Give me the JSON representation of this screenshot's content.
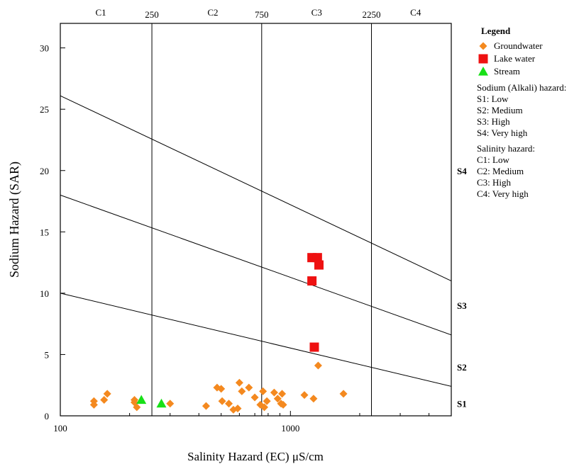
{
  "chart_data": {
    "type": "scatter",
    "xscale": "log",
    "xlim": [
      100,
      5000
    ],
    "ylim": [
      0,
      32
    ],
    "xlabel": "Salinity Hazard (EC) μS/cm",
    "ylabel": "Sodium Hazard (SAR)",
    "x_ticks": [
      {
        "value": 100,
        "label": "100"
      },
      {
        "value": 1000,
        "label": "1000"
      }
    ],
    "y_ticks": [
      0,
      5,
      10,
      15,
      20,
      25,
      30
    ],
    "salinity_boundaries": [
      {
        "value": 250,
        "label": "250"
      },
      {
        "value": 750,
        "label": "750"
      },
      {
        "value": 2250,
        "label": "2250"
      }
    ],
    "salinity_classes": [
      {
        "label": "C1",
        "x": 150
      },
      {
        "label": "C2",
        "x": 460
      },
      {
        "label": "C3",
        "x": 1300
      },
      {
        "label": "C4",
        "x": 3500
      }
    ],
    "sodium_boundaries": [
      {
        "label": "S1/S2",
        "x": [
          100,
          5000
        ],
        "y": [
          10,
          2.4
        ]
      },
      {
        "label": "S2/S3",
        "x": [
          100,
          5000
        ],
        "y": [
          18,
          6.6
        ]
      },
      {
        "label": "S3/S4",
        "x": [
          100,
          5000
        ],
        "y": [
          26.1,
          11
        ]
      }
    ],
    "sodium_class_labels": [
      {
        "label": "S1",
        "y": 1
      },
      {
        "label": "S2",
        "y": 4
      },
      {
        "label": "S3",
        "y": 9
      },
      {
        "label": "S4",
        "y": 20
      }
    ],
    "grid": false,
    "legend_position": "right",
    "series": [
      {
        "name": "Groundwater",
        "marker": "diamond",
        "color": "#f4891f",
        "points": [
          [
            140,
            0.9
          ],
          [
            140,
            1.2
          ],
          [
            155,
            1.3
          ],
          [
            160,
            1.8
          ],
          [
            210,
            1.3
          ],
          [
            210,
            1.1
          ],
          [
            215,
            0.7
          ],
          [
            300,
            1.0
          ],
          [
            430,
            0.8
          ],
          [
            480,
            2.3
          ],
          [
            500,
            2.2
          ],
          [
            505,
            1.2
          ],
          [
            540,
            1.0
          ],
          [
            565,
            0.5
          ],
          [
            590,
            0.6
          ],
          [
            600,
            2.7
          ],
          [
            615,
            2.0
          ],
          [
            660,
            2.3
          ],
          [
            700,
            1.5
          ],
          [
            740,
            0.9
          ],
          [
            760,
            2.0
          ],
          [
            770,
            0.7
          ],
          [
            790,
            1.2
          ],
          [
            850,
            1.9
          ],
          [
            880,
            1.4
          ],
          [
            910,
            1.0
          ],
          [
            920,
            1.8
          ],
          [
            930,
            0.9
          ],
          [
            1150,
            1.7
          ],
          [
            1260,
            1.4
          ],
          [
            1320,
            4.1
          ],
          [
            1700,
            1.8
          ]
        ]
      },
      {
        "name": "Lake water",
        "marker": "square",
        "color": "#ee1111",
        "points": [
          [
            1240,
            12.9
          ],
          [
            1310,
            12.9
          ],
          [
            1330,
            12.3
          ],
          [
            1240,
            11.0
          ],
          [
            1270,
            5.6
          ]
        ]
      },
      {
        "name": "Stream",
        "marker": "triangle",
        "color": "#17e017",
        "points": [
          [
            225,
            1.3
          ],
          [
            275,
            1.0
          ]
        ]
      }
    ]
  },
  "legend": {
    "title": "Legend",
    "sodium_title": "Sodium (Alkali) hazard:",
    "sodium_items": [
      "S1: Low",
      "S2: Medium",
      "S3: High",
      "S4: Very high"
    ],
    "salinity_title": "Salinity hazard:",
    "salinity_items": [
      "C1: Low",
      "C2: Medium",
      "C3: High",
      "C4: Very high"
    ]
  }
}
